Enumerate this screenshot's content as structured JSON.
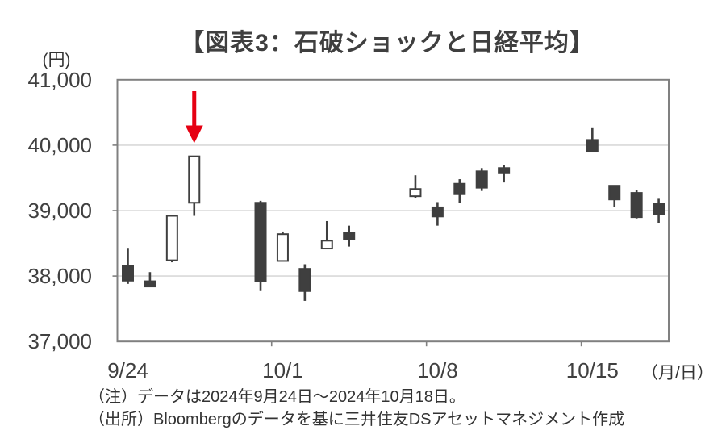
{
  "title": "【図表3：石破ショックと日経平均】",
  "y_axis": {
    "unit": "(円)",
    "tick_labels": [
      "41,000",
      "40,000",
      "39,000",
      "38,000",
      "37,000"
    ],
    "tick_values": [
      41000,
      40000,
      39000,
      38000,
      37000
    ]
  },
  "x_axis": {
    "unit": "（月/日）",
    "tick_labels": [
      "9/24",
      "10/1",
      "10/8",
      "10/15"
    ],
    "tick_day_offsets": [
      0,
      7,
      14,
      21
    ],
    "boundary_tick_day_offsets": [
      6.5,
      13.5,
      20.5
    ]
  },
  "notes": [
    "（注）データは2024年9月24日～2024年10月18日。",
    "（出所）Bloombergのデータを基に三井住友DSアセットマネジメント作成"
  ],
  "annotation": {
    "type": "down-arrow",
    "target_date": "9/27",
    "color": "#e60012"
  },
  "chart_data": {
    "type": "candlestick",
    "title": "【図表3：石破ショックと日経平均】",
    "y_unit": "円",
    "ylim": [
      37000,
      41000
    ],
    "x_range": [
      "9/24",
      "10/18"
    ],
    "grid": true,
    "colors": {
      "up_fill": "#ffffff",
      "down_fill": "#3f3f3f",
      "outline": "#3f3f3f",
      "gridline": "#d9d9d9",
      "border": "#808080"
    },
    "candles": [
      {
        "date": "9/24",
        "day_offset": 0,
        "open": 38150,
        "high": 38430,
        "low": 37880,
        "close": 37930
      },
      {
        "date": "9/25",
        "day_offset": 1,
        "open": 37920,
        "high": 38060,
        "low": 37830,
        "close": 37840
      },
      {
        "date": "9/26",
        "day_offset": 2,
        "open": 38240,
        "high": 38920,
        "low": 38210,
        "close": 38920
      },
      {
        "date": "9/27",
        "day_offset": 3,
        "open": 39120,
        "high": 39830,
        "low": 38920,
        "close": 39830
      },
      {
        "date": "9/30",
        "day_offset": 6,
        "open": 39120,
        "high": 39150,
        "low": 37770,
        "close": 37920
      },
      {
        "date": "10/1",
        "day_offset": 7,
        "open": 38230,
        "high": 38680,
        "low": 38230,
        "close": 38640
      },
      {
        "date": "10/2",
        "day_offset": 8,
        "open": 38110,
        "high": 38180,
        "low": 37620,
        "close": 37770
      },
      {
        "date": "10/3",
        "day_offset": 9,
        "open": 38420,
        "high": 38840,
        "low": 38420,
        "close": 38540
      },
      {
        "date": "10/4",
        "day_offset": 10,
        "open": 38660,
        "high": 38770,
        "low": 38450,
        "close": 38560
      },
      {
        "date": "10/7",
        "day_offset": 13,
        "open": 39220,
        "high": 39540,
        "low": 39190,
        "close": 39330
      },
      {
        "date": "10/8",
        "day_offset": 14,
        "open": 39050,
        "high": 39130,
        "low": 38770,
        "close": 38910
      },
      {
        "date": "10/9",
        "day_offset": 15,
        "open": 39410,
        "high": 39480,
        "low": 39120,
        "close": 39250
      },
      {
        "date": "10/10",
        "day_offset": 16,
        "open": 39600,
        "high": 39650,
        "low": 39300,
        "close": 39350
      },
      {
        "date": "10/11",
        "day_offset": 17,
        "open": 39650,
        "high": 39700,
        "low": 39430,
        "close": 39570
      },
      {
        "date": "10/15",
        "day_offset": 21,
        "open": 40080,
        "high": 40260,
        "low": 39890,
        "close": 39900
      },
      {
        "date": "10/16",
        "day_offset": 22,
        "open": 39380,
        "high": 39380,
        "low": 39050,
        "close": 39170
      },
      {
        "date": "10/17",
        "day_offset": 23,
        "open": 39270,
        "high": 39310,
        "low": 38880,
        "close": 38900
      },
      {
        "date": "10/18",
        "day_offset": 24,
        "open": 39100,
        "high": 39180,
        "low": 38810,
        "close": 38940
      }
    ]
  }
}
